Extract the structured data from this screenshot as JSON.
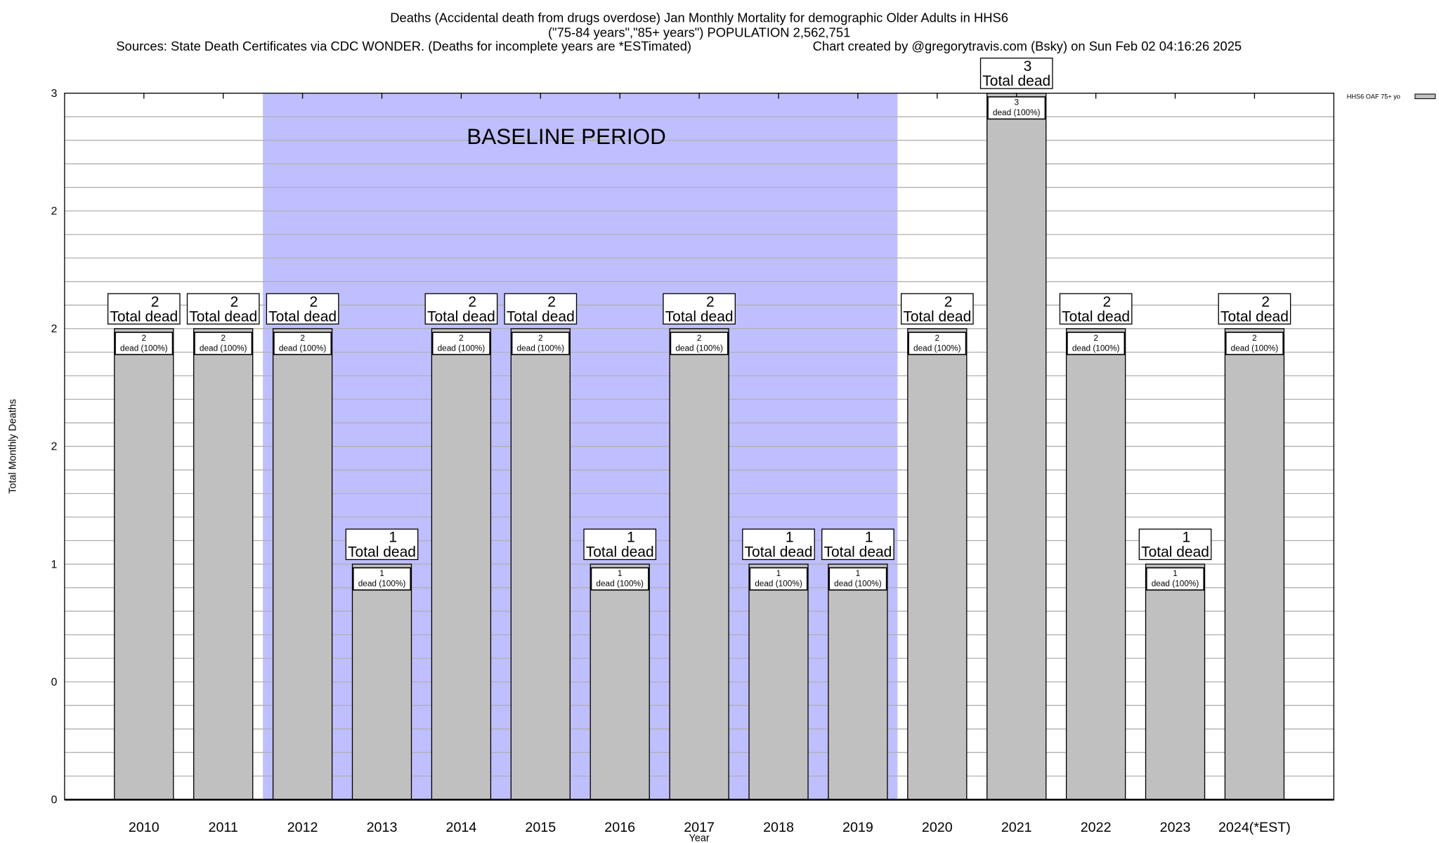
{
  "chart_data": {
    "type": "bar",
    "title_lines": [
      "Deaths (Accidental death from drugs overdose) Jan Monthly Mortality for demographic Older Adults in HHS6",
      "(\"75-84 years\",\"85+ years\") POPULATION 2,562,751"
    ],
    "sources": "Sources: State Death Certificates via CDC WONDER. (Deaths for incomplete years are *ESTimated)",
    "credit": "Chart created by @gregorytravis.com (Bsky) on Sun Feb 02 04:16:26 2025",
    "xlabel": "Year",
    "ylabel": "Total Monthly Deaths",
    "ylim": [
      0,
      3
    ],
    "yticks": [
      0,
      0.5,
      1,
      1.5,
      2,
      2.5,
      3
    ],
    "ytick_labels": [
      "0",
      "0",
      "1",
      "2",
      "2",
      "2",
      "3"
    ],
    "categories": [
      "2010",
      "2011",
      "2012",
      "2013",
      "2014",
      "2015",
      "2016",
      "2017",
      "2018",
      "2019",
      "2020",
      "2021",
      "2022",
      "2023",
      "2024(*EST)"
    ],
    "series": [
      {
        "name": "HHS6 OAF 75+ yo",
        "values": [
          2,
          2,
          2,
          1,
          2,
          2,
          1,
          2,
          1,
          1,
          2,
          3,
          2,
          1,
          2
        ],
        "color": "#c0c0c0"
      }
    ],
    "inner_label_suffix": "dead (100%)",
    "outer_label_suffix": "Total dead",
    "baseline": {
      "label": "BASELINE PERIOD",
      "from": "2012",
      "to": "2019",
      "color": "#bfbfff"
    },
    "grid": true,
    "legend": "top-right"
  }
}
